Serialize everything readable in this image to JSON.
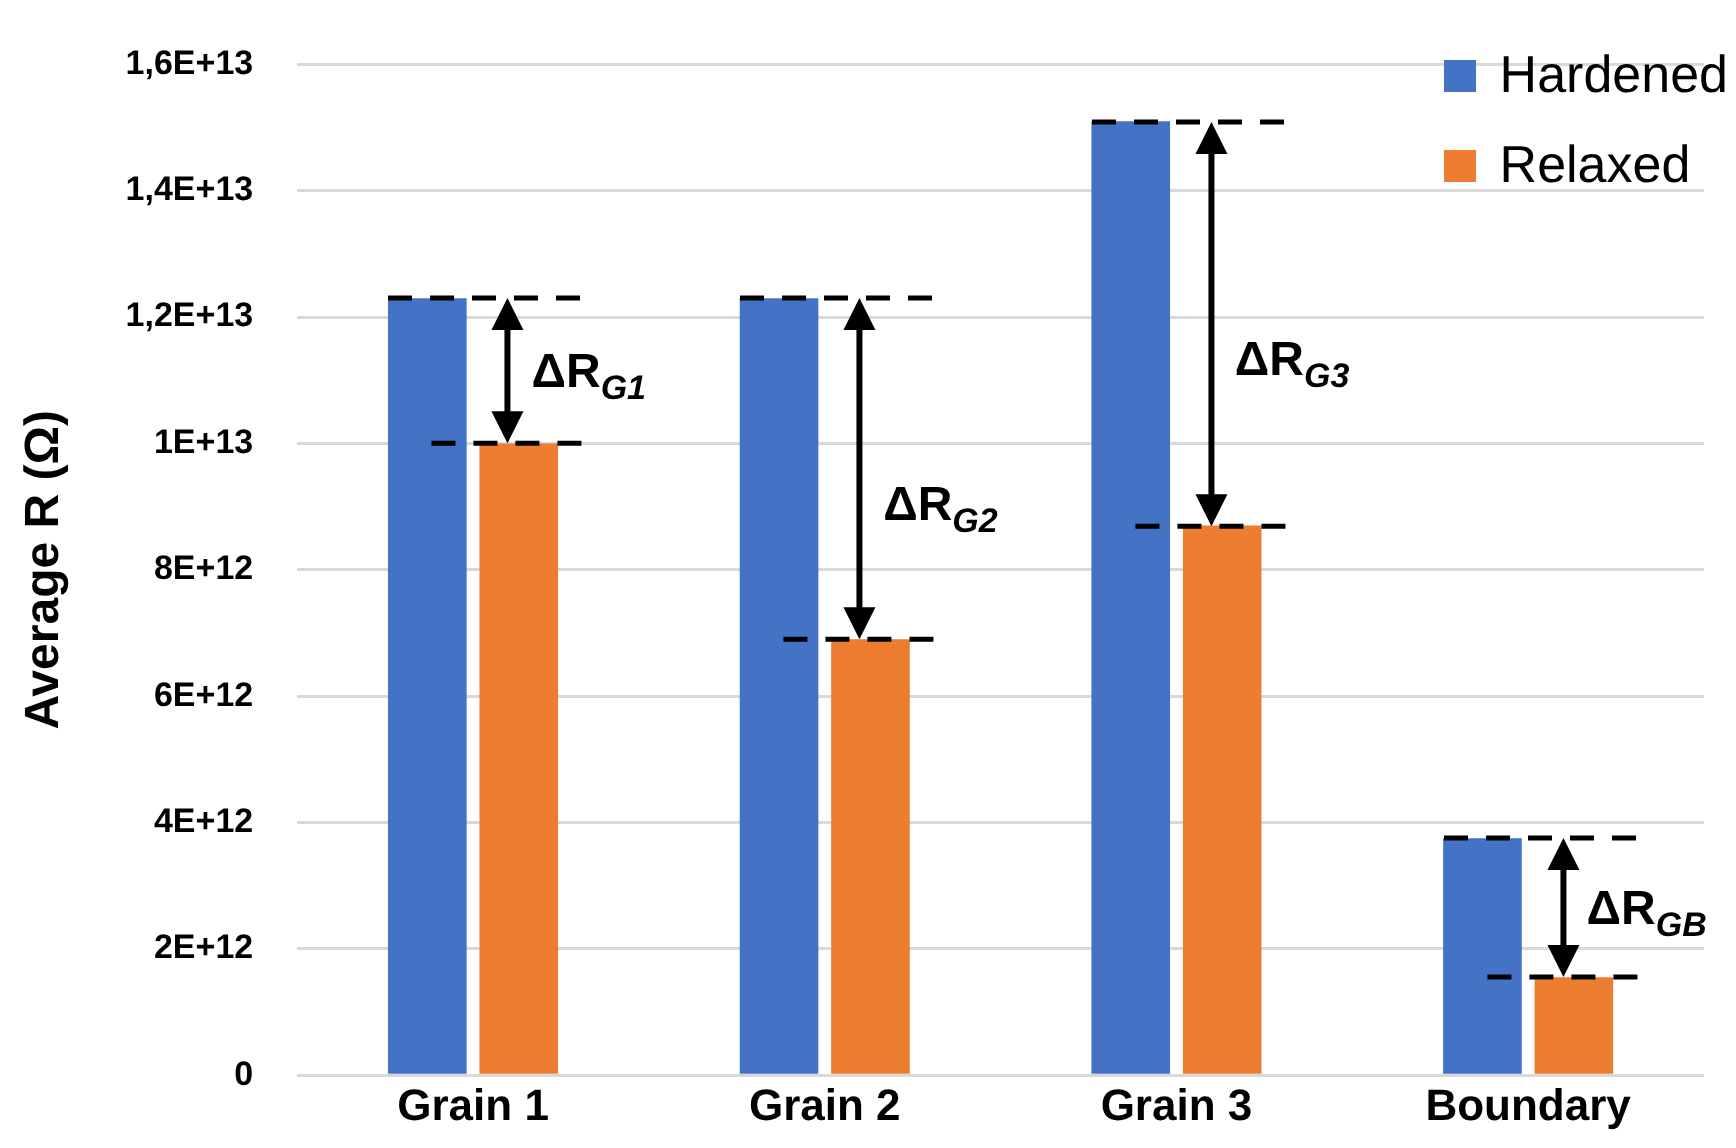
{
  "chart_data": {
    "type": "bar",
    "ylabel": "Average R (Ω)",
    "categories": [
      "Grain 1",
      "Grain 2",
      "Grain 3",
      "Boundary"
    ],
    "series": [
      {
        "name": "Hardened",
        "color": "#4472c4",
        "values": [
          12300000000000.0,
          12300000000000.0,
          15100000000000.0,
          3750000000000.0
        ]
      },
      {
        "name": "Relaxed",
        "color": "#ed7d31",
        "values": [
          10000000000000.0,
          6900000000000.0,
          8700000000000.0,
          1550000000000.0
        ]
      }
    ],
    "ylim": [
      0,
      16000000000000.0
    ],
    "yticks": [
      0,
      {
        "value": 2000000000000.0,
        "label": "2E+12"
      },
      {
        "value": 4000000000000.0,
        "label": "4E+12"
      },
      {
        "value": 6000000000000.0,
        "label": "6E+12"
      },
      {
        "value": 8000000000000.0,
        "label": "8E+12"
      },
      {
        "value": 10000000000000.0,
        "label": "1E+13"
      },
      {
        "value": 12000000000000.0,
        "label": "1,2E+13"
      },
      {
        "value": 14000000000000.0,
        "label": "1,4E+13"
      },
      {
        "value": 16000000000000.0,
        "label": "1,6E+13"
      }
    ],
    "annotations": [
      {
        "text": "ΔR$_{G1}$",
        "x": "Grain 1",
        "y": 11100000000000.0
      },
      {
        "text": "ΔR$_{G2}$",
        "x": "Grain 2",
        "y": 9000000000000.0
      },
      {
        "text": "ΔR$_{G3}$",
        "x": "Grain 3",
        "y": 11300000000000.0
      },
      {
        "text": "ΔR$_{GB}$",
        "x": "Boundary",
        "y": 2600000000000.0
      }
    ],
    "grid": "y",
    "legend": "top right"
  }
}
